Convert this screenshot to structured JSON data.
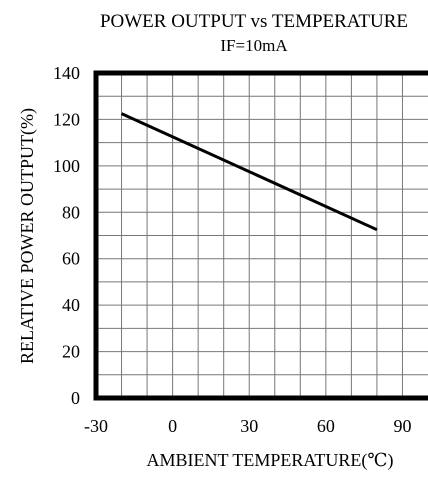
{
  "chart_data": {
    "type": "line",
    "title": "POWER OUTPUT vs TEMPERATURE",
    "subtitle": "IF=10mA",
    "xlabel": "AMBIENT TEMPERATURE(℃)",
    "ylabel": "RELATIVE POWER OUTPUT(%)",
    "xlim": [
      -30,
      100
    ],
    "ylim": [
      0,
      140
    ],
    "xticks": [
      -30,
      0,
      30,
      60,
      90
    ],
    "yticks": [
      0,
      20,
      40,
      60,
      80,
      100,
      120,
      140
    ],
    "x_minor_step": 10,
    "y_minor_step": 10,
    "grid": true,
    "series": [
      {
        "color": "#000000",
        "x": [
          -20,
          80
        ],
        "y": [
          122.5,
          72.5
        ]
      }
    ]
  }
}
